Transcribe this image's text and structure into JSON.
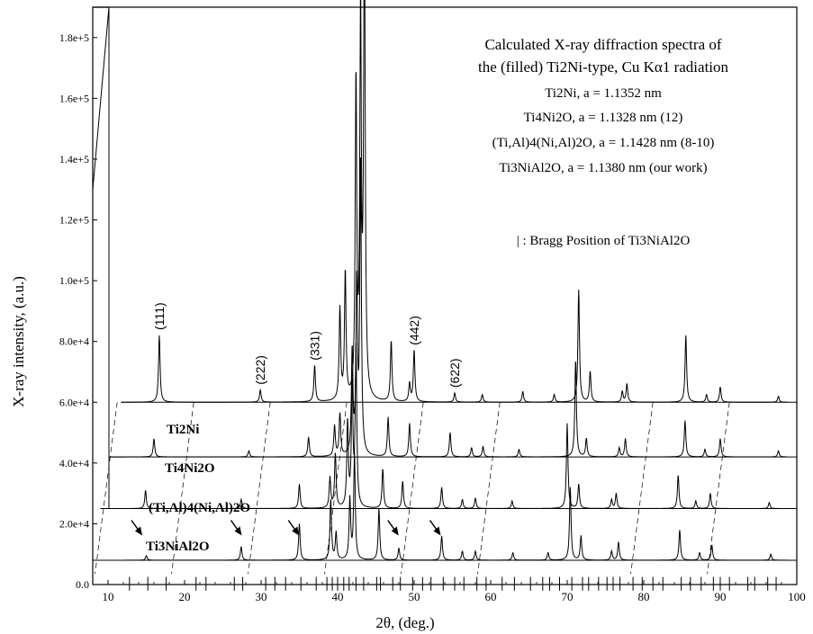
{
  "chart_data": {
    "type": "line",
    "title_lines": [
      "Calculated X-ray diffraction spectra of",
      "the (filled) Ti2Ni-type, Cu Kα1 radiation"
    ],
    "legend_lines": [
      "Ti2Ni,  a = 1.1352 nm",
      "Ti4Ni2O,  a = 1.1328 nm (12)",
      "(Ti,Al)4(Ni,Al)2O, a = 1.1428 nm (8-10)",
      "Ti3NiAl2O,  a = 1.1380 nm (our work)"
    ],
    "bragg_note": "| : Bragg Position of  Ti3NiAl2O",
    "xlabel": "2θ, (deg.)",
    "ylabel": "X-ray intensity, (a.u.)",
    "xlim": [
      8,
      100
    ],
    "ylim": [
      0,
      190000
    ],
    "x_ticks": [
      "10",
      "20",
      "30",
      "40",
      "50",
      "60",
      "70",
      "80",
      "90",
      "100"
    ],
    "x_tick_values": [
      10,
      20,
      30,
      40,
      50,
      60,
      70,
      80,
      90,
      100
    ],
    "y_ticks": [
      "0.0",
      "2.0e+4",
      "4.0e+4",
      "6.0e+4",
      "8.0e+4",
      "1.0e+5",
      "1.2e+5",
      "1.4e+5",
      "1.6e+5",
      "1.8e+5"
    ],
    "y_tick_values": [
      0,
      20000,
      40000,
      60000,
      80000,
      100000,
      120000,
      140000,
      160000,
      180000
    ],
    "hkl_labels": [
      {
        "text": "(111)",
        "x": 16.0
      },
      {
        "text": "(222)",
        "x": 29.2
      },
      {
        "text": "(331)",
        "x": 36.3
      },
      {
        "text": "(442)",
        "x": 49.3
      },
      {
        "text": "(622)",
        "x": 54.6
      }
    ],
    "series": [
      {
        "name": "Ti2Ni",
        "label": "Ti2Ni",
        "offset": 60000,
        "x_shift": 0.7,
        "peaks": [
          [
            16.0,
            22000
          ],
          [
            29.2,
            4000
          ],
          [
            36.3,
            12000
          ],
          [
            39.6,
            30000
          ],
          [
            40.3,
            42000
          ],
          [
            41.7,
            104000
          ],
          [
            42.3,
            124000
          ],
          [
            42.8,
            160000
          ],
          [
            46.3,
            20000
          ],
          [
            48.7,
            6000
          ],
          [
            49.3,
            17000
          ],
          [
            54.6,
            3000
          ],
          [
            58.2,
            2500
          ],
          [
            63.5,
            3500
          ],
          [
            67.6,
            2500
          ],
          [
            70.8,
            37000
          ],
          [
            72.3,
            10000
          ],
          [
            76.5,
            3500
          ],
          [
            77.1,
            6000
          ],
          [
            84.8,
            22000
          ],
          [
            87.5,
            2500
          ],
          [
            89.3,
            5000
          ],
          [
            96.9,
            2000
          ]
        ]
      },
      {
        "name": "Ti4Ni2O",
        "label": "Ti4Ni2O",
        "offset": 42000,
        "x_shift": 0.4,
        "peaks": [
          [
            15.6,
            6000
          ],
          [
            28.0,
            2000
          ],
          [
            35.8,
            6500
          ],
          [
            39.2,
            10000
          ],
          [
            39.9,
            14000
          ],
          [
            41.5,
            34000
          ],
          [
            42.1,
            56000
          ],
          [
            42.6,
            95000
          ],
          [
            46.2,
            13000
          ],
          [
            49.0,
            11000
          ],
          [
            54.3,
            8000
          ],
          [
            57.1,
            3000
          ],
          [
            58.6,
            3500
          ],
          [
            63.3,
            2500
          ],
          [
            70.7,
            32000
          ],
          [
            72.1,
            6000
          ],
          [
            76.4,
            3000
          ],
          [
            77.2,
            6000
          ],
          [
            85.0,
            12000
          ],
          [
            87.6,
            2500
          ],
          [
            89.6,
            6000
          ],
          [
            97.2,
            2000
          ]
        ]
      },
      {
        "name": "(Ti,Al)4(Ni,Al)2O",
        "label": "(Ti,Al)4(Ni,Al)2O",
        "offset": 25000,
        "x_shift": 0.0,
        "peaks": [
          [
            14.9,
            6000
          ],
          [
            27.4,
            3000
          ],
          [
            35.0,
            8000
          ],
          [
            39.0,
            10000
          ],
          [
            39.7,
            18000
          ],
          [
            41.3,
            28000
          ],
          [
            41.9,
            40000
          ],
          [
            42.4,
            52000
          ],
          [
            45.9,
            13000
          ],
          [
            48.5,
            9000
          ],
          [
            53.6,
            7000
          ],
          [
            56.3,
            3000
          ],
          [
            58.0,
            3500
          ],
          [
            62.8,
            2500
          ],
          [
            70.0,
            28000
          ],
          [
            71.5,
            8000
          ],
          [
            75.8,
            3000
          ],
          [
            76.4,
            5000
          ],
          [
            84.5,
            11000
          ],
          [
            86.8,
            2500
          ],
          [
            88.7,
            5000
          ],
          [
            96.4,
            2000
          ]
        ]
      },
      {
        "name": "Ti3NiAl2O",
        "label": "Ti3NiAl2O",
        "offset": 8000,
        "x_shift": -0.2,
        "peaks": [
          [
            15.2,
            1500
          ],
          [
            27.6,
            4500
          ],
          [
            35.2,
            12000
          ],
          [
            39.3,
            20000
          ],
          [
            40.0,
            9000
          ],
          [
            41.8,
            20000
          ],
          [
            42.4,
            35000
          ],
          [
            45.6,
            17000
          ],
          [
            48.2,
            4000
          ],
          [
            53.8,
            8000
          ],
          [
            56.5,
            3000
          ],
          [
            58.2,
            3000
          ],
          [
            63.1,
            2500
          ],
          [
            67.7,
            2500
          ],
          [
            70.6,
            24000
          ],
          [
            72.0,
            8000
          ],
          [
            76.0,
            3000
          ],
          [
            76.9,
            6000
          ],
          [
            84.9,
            10000
          ],
          [
            87.5,
            2500
          ],
          [
            89.1,
            5000
          ],
          [
            96.8,
            2000
          ]
        ]
      }
    ],
    "arrows_at": [
      14.0,
      27.0,
      34.5,
      47.5,
      53.0
    ],
    "bragg_positions": [
      12.8,
      15.2,
      17.6,
      21.5,
      22.8,
      26.5,
      27.6,
      30.6,
      31.8,
      33.2,
      35.2,
      37.2,
      38.6,
      39.3,
      40.0,
      40.8,
      41.5,
      42.4,
      43.4,
      45.1,
      45.6,
      47.2,
      48.2,
      49.8,
      51.1,
      52.2,
      53.8,
      55.3,
      56.5,
      58.2,
      59.4,
      61.5,
      63.1,
      65.2,
      66.8,
      67.7,
      69.0,
      70.6,
      72.0,
      72.8,
      74.1,
      75.2,
      76.0,
      76.9,
      78.6,
      79.8,
      81.2,
      82.5,
      84.9,
      86.1,
      87.5,
      89.1,
      90.0,
      91.2,
      93.6,
      94.5,
      96.2,
      97.3
    ]
  }
}
